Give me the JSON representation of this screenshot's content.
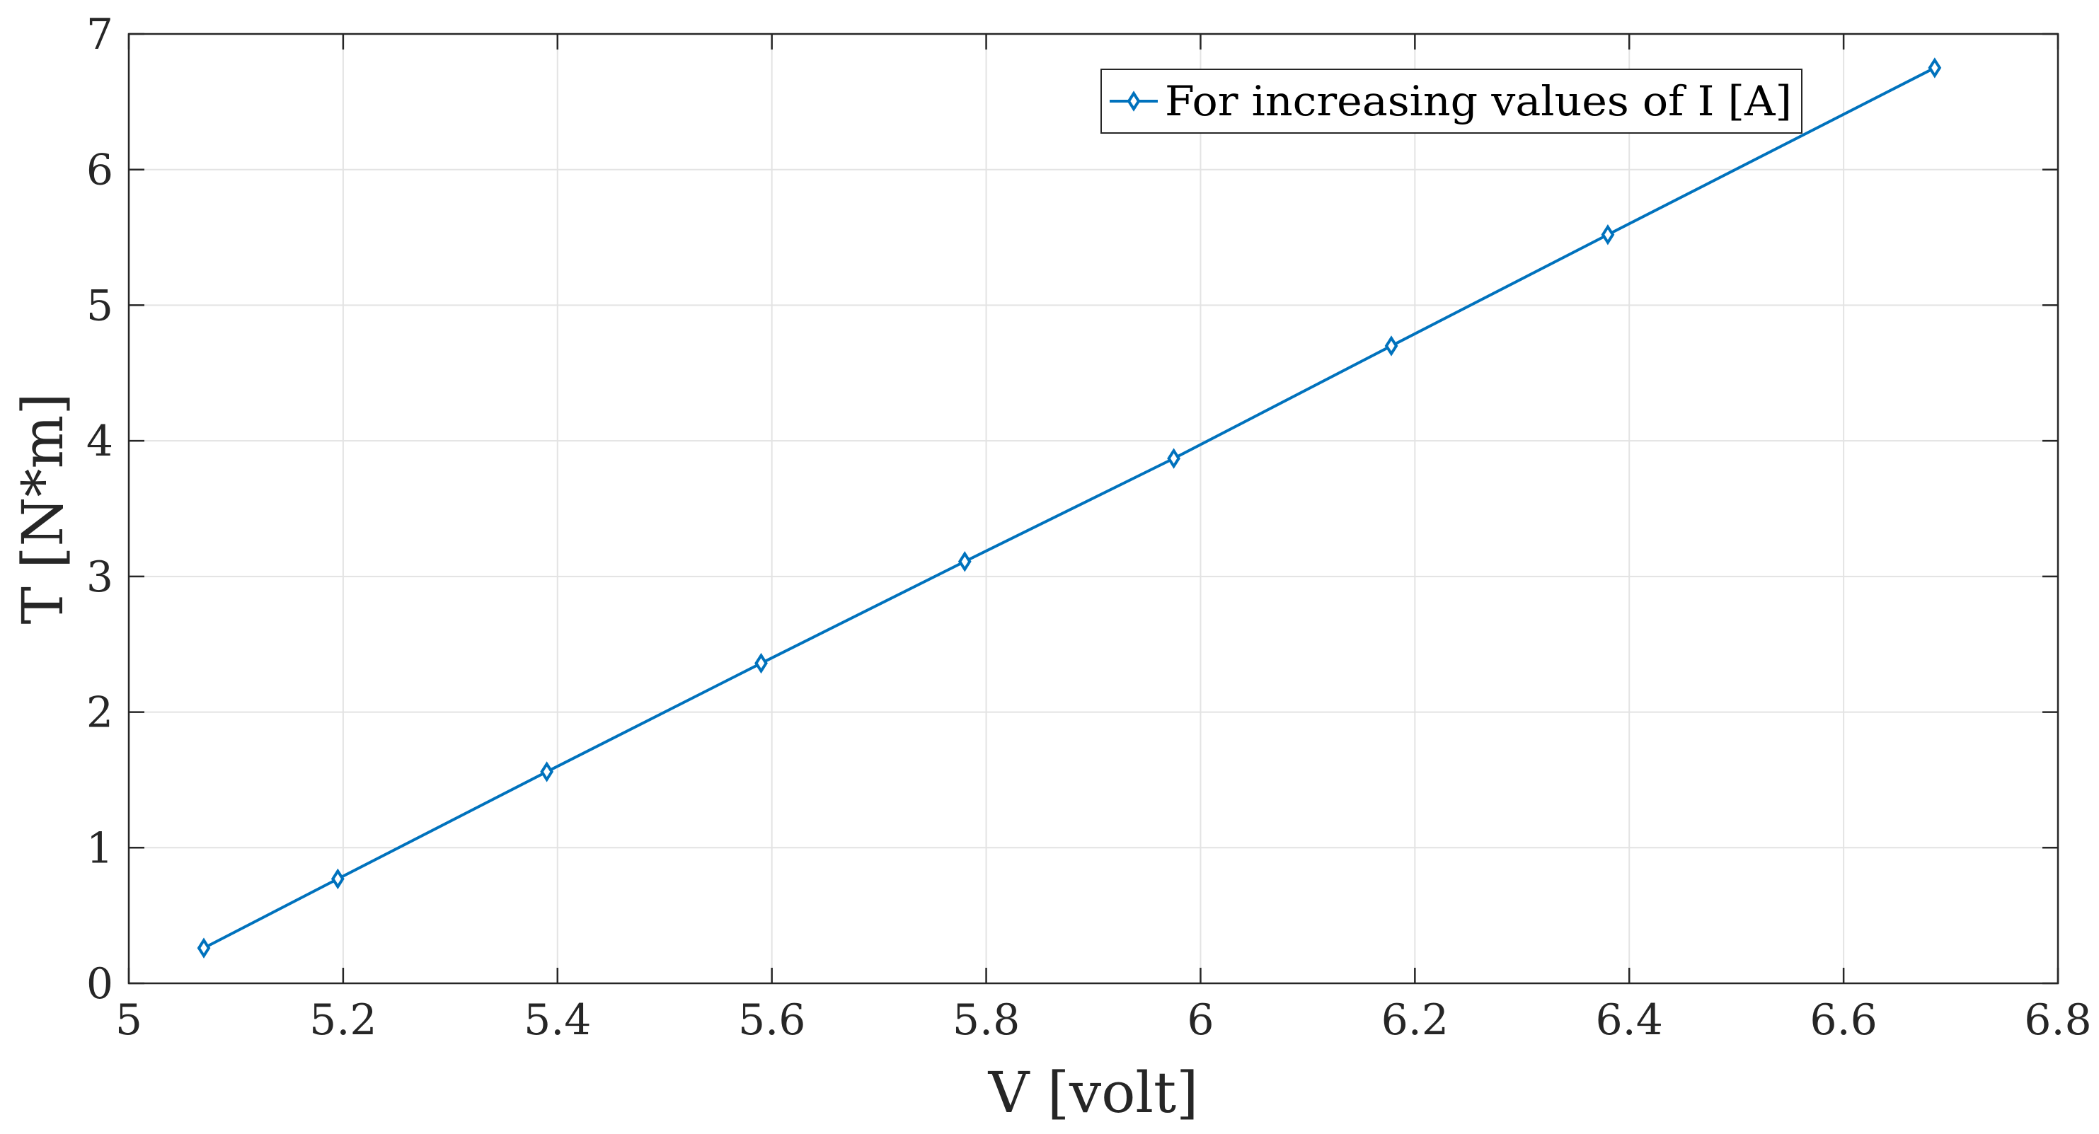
{
  "chart_data": {
    "type": "line",
    "title": "",
    "xlabel": "V [volt]",
    "ylabel": "T [N*m]",
    "xlim": [
      5,
      6.8
    ],
    "ylim": [
      0,
      7
    ],
    "xticks": [
      5,
      5.2,
      5.4,
      5.6,
      5.8,
      6,
      6.2,
      6.4,
      6.6,
      6.8
    ],
    "xtick_labels": [
      "5",
      "5.2",
      "5.4",
      "5.6",
      "5.8",
      "6",
      "6.2",
      "6.4",
      "6.6",
      "6.8"
    ],
    "yticks": [
      0,
      1,
      2,
      3,
      4,
      5,
      6,
      7
    ],
    "ytick_labels": [
      "0",
      "1",
      "2",
      "3",
      "4",
      "5",
      "6",
      "7"
    ],
    "grid": true,
    "legend_position": "top-right",
    "series": [
      {
        "name": "For increasing values of I [A]",
        "color": "#0072BD",
        "marker": "diamond",
        "x": [
          5.07,
          5.195,
          5.39,
          5.59,
          5.78,
          5.975,
          6.178,
          6.38,
          6.685
        ],
        "y": [
          0.26,
          0.77,
          1.56,
          2.36,
          3.11,
          3.87,
          4.7,
          5.52,
          6.75
        ]
      }
    ]
  }
}
